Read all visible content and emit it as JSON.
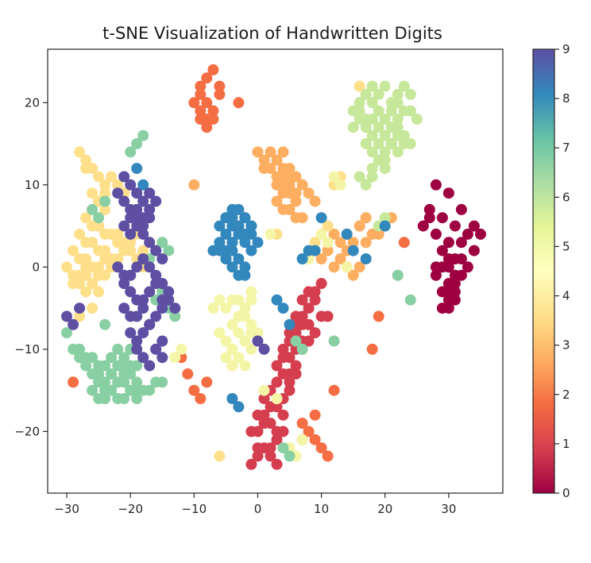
{
  "chart_data": {
    "type": "scatter",
    "title": "t-SNE Visualization of Handwritten Digits",
    "xlabel": "",
    "ylabel": "",
    "xlim": [
      -33,
      38.5
    ],
    "ylim": [
      -27.5,
      26.5
    ],
    "xticks": [
      -30,
      -20,
      -10,
      0,
      10,
      20,
      30
    ],
    "yticks": [
      -20,
      -10,
      0,
      10,
      20
    ],
    "grid": false,
    "legend": "none",
    "colormap": "Spectral",
    "colorbar": {
      "min": 0,
      "max": 9,
      "ticks": [
        0,
        1,
        2,
        3,
        4,
        5,
        6,
        7,
        8,
        9
      ],
      "colors": [
        "#9e0142",
        "#d53e4f",
        "#f46d43",
        "#fdae61",
        "#fee08b",
        "#ffffbf",
        "#e6f598",
        "#abdda4",
        "#66c2a5",
        "#3288bd",
        "#5e4fa2"
      ]
    },
    "series": [
      {
        "label": 0,
        "color": "#9e0142",
        "x": [
          28,
          30,
          32,
          34,
          27,
          29,
          31,
          33,
          35,
          26,
          28,
          30,
          32,
          34,
          29,
          31,
          33,
          30,
          32,
          28,
          30,
          31,
          29,
          30,
          31,
          32,
          30,
          29,
          31,
          30,
          29,
          31,
          30,
          28,
          27,
          21
        ],
        "y": [
          10,
          9,
          7,
          5,
          7,
          6,
          5,
          4,
          4,
          5,
          4,
          3,
          3,
          2,
          2,
          1,
          0,
          0,
          -1,
          -1,
          -2,
          -3,
          -3,
          -4,
          -2,
          1,
          1,
          0,
          -1,
          -5,
          -5,
          -4,
          -3,
          0,
          6,
          15
        ]
      },
      {
        "label": 1,
        "color": "#d53e4f",
        "x": [
          -1,
          0,
          1,
          2,
          3,
          -1,
          0,
          1,
          2,
          3,
          0,
          1,
          2,
          3,
          4,
          0,
          2,
          3,
          4,
          5,
          3,
          4,
          5,
          6,
          5,
          6,
          7,
          4,
          5,
          6,
          7,
          6,
          7,
          8,
          7,
          8,
          9,
          8,
          9,
          10,
          11,
          9,
          10,
          5,
          6,
          3,
          4,
          1,
          2,
          7,
          8,
          5,
          6,
          4
        ],
        "y": [
          -24,
          -23,
          -22,
          -22,
          -21,
          -20,
          -20,
          -19,
          -19,
          -20,
          -18,
          -18,
          -17,
          -17,
          -18,
          -22,
          -23,
          -24,
          -16,
          -15,
          -14,
          -13,
          -13,
          -12,
          -11,
          -10,
          -9,
          -10,
          -9,
          -8,
          -7,
          -6,
          -6,
          -5,
          -4,
          -3,
          -3,
          -7,
          -8,
          -6,
          -6,
          -4,
          -2,
          -14,
          -13,
          -12,
          -11,
          -16,
          -15,
          -10,
          -9,
          -8,
          -7,
          -20
        ]
      },
      {
        "label": 2,
        "color": "#f46d43",
        "x": [
          -9,
          -8,
          -7,
          -6,
          -9,
          -8,
          -7,
          -10,
          -9,
          -8,
          -6,
          -7,
          -8,
          -9,
          -3,
          -12,
          -11,
          -10,
          -9,
          -8,
          7,
          8,
          9,
          10,
          11,
          7,
          9,
          12,
          -29,
          -25,
          23,
          19,
          18
        ],
        "y": [
          22,
          23,
          24,
          22,
          21,
          20,
          19,
          20,
          19,
          18,
          21,
          18,
          17,
          18,
          20,
          -11,
          -13,
          -15,
          -16,
          -14,
          -19,
          -20,
          -21,
          -22,
          -23,
          -21,
          -18,
          -15,
          -14,
          5,
          3,
          -6,
          -10
        ]
      },
      {
        "label": 3,
        "color": "#fdae61",
        "x": [
          0,
          1,
          2,
          3,
          4,
          1,
          2,
          3,
          4,
          5,
          3,
          4,
          5,
          6,
          3,
          4,
          5,
          6,
          7,
          4,
          5,
          6,
          4,
          5,
          6,
          7,
          8,
          9,
          10,
          11,
          12,
          13,
          14,
          15,
          12,
          13,
          14,
          16,
          17,
          18,
          16,
          17,
          19,
          20,
          21,
          15,
          16,
          22,
          -10,
          -21,
          14
        ],
        "y": [
          14,
          13,
          14,
          13,
          14,
          12,
          12,
          11,
          11,
          10,
          10,
          9,
          9,
          8,
          8,
          7,
          7,
          6,
          6,
          10,
          11,
          9,
          12,
          12,
          11,
          10,
          9,
          8,
          1,
          2,
          0,
          1,
          2,
          3,
          4,
          3,
          4,
          5,
          6,
          4,
          5,
          3,
          4,
          5,
          6,
          -1,
          0,
          -1,
          10,
          9,
          0
        ]
      },
      {
        "label": 4,
        "color": "#fee08b",
        "x": [
          -27,
          -26,
          -25,
          -24,
          -23,
          -28,
          -27,
          -26,
          -25,
          -24,
          -22,
          -21,
          -28,
          -27,
          -26,
          -25,
          -24,
          -23,
          -29,
          -28,
          -27,
          -26,
          -25,
          -24,
          -22,
          -21,
          -30,
          -29,
          -28,
          -27,
          -26,
          -25,
          -24,
          -23,
          -22,
          -21,
          -20,
          -19,
          -29,
          -28,
          -27,
          -26,
          -25,
          -27,
          -25,
          -22,
          -21,
          -20,
          -19,
          -18,
          -26,
          -25,
          -24,
          -23,
          -22,
          -18,
          -17,
          -27,
          -26,
          -25,
          -24,
          16,
          17,
          18,
          12,
          13,
          9,
          10,
          11,
          -28,
          -26,
          -6,
          3
        ],
        "y": [
          13,
          12,
          11,
          10,
          11,
          14,
          12,
          9,
          8,
          9,
          10,
          9,
          4,
          3,
          3,
          2,
          2,
          1,
          2,
          1,
          1,
          0,
          0,
          1,
          4,
          3,
          0,
          -1,
          -1,
          0,
          0,
          -1,
          -1,
          0,
          1,
          2,
          3,
          4,
          -2,
          -2,
          -1,
          -2,
          -1,
          -3,
          -3,
          3,
          2,
          2,
          1,
          0,
          5,
          5,
          4,
          4,
          3,
          2,
          3,
          6,
          5,
          6,
          7,
          22,
          21,
          22,
          10,
          11,
          3,
          4,
          5,
          -6,
          -5,
          -23,
          4
        ]
      },
      {
        "label": 5,
        "color": "#f5f5a8",
        "x": [
          -7,
          -6,
          -5,
          -4,
          -3,
          -2,
          -1,
          -6,
          -5,
          -4,
          -3,
          -2,
          -1,
          -5,
          -4,
          -3,
          -2,
          -1,
          -4,
          -3,
          -2,
          -1,
          0,
          -4,
          -3,
          -2,
          -1,
          -3,
          -2,
          -1,
          1,
          3,
          2,
          10,
          11,
          9,
          8,
          14,
          13,
          12,
          -12,
          -13,
          -19,
          5,
          6,
          7,
          3
        ],
        "y": [
          -5,
          -4,
          -5,
          -4,
          -4,
          -5,
          -3,
          -8,
          -9,
          -10,
          -8,
          -9,
          -10,
          -11,
          -12,
          -11,
          -9,
          -8,
          -7,
          -6,
          -6,
          -7,
          -8,
          -10,
          -11,
          -12,
          -10,
          -6,
          -5,
          -4,
          -15,
          -16,
          4,
          4,
          3,
          2,
          1,
          0,
          10,
          11,
          -10,
          -11,
          -6,
          -22,
          -23,
          -21,
          -16
        ]
      },
      {
        "label": 6,
        "color": "#c7e89b",
        "x": [
          15,
          16,
          17,
          18,
          19,
          20,
          21,
          22,
          23,
          24,
          16,
          17,
          18,
          19,
          20,
          21,
          22,
          23,
          17,
          18,
          19,
          20,
          21,
          22,
          18,
          19,
          20,
          21,
          22,
          17,
          18,
          19,
          20,
          16,
          17,
          18,
          19,
          22,
          23,
          24,
          25,
          22,
          23,
          15,
          16,
          17,
          18,
          20,
          21,
          24,
          19,
          20
        ],
        "y": [
          19,
          20,
          21,
          22,
          21,
          22,
          20,
          21,
          22,
          21,
          19,
          18,
          20,
          19,
          18,
          19,
          20,
          19,
          17,
          18,
          17,
          16,
          17,
          18,
          16,
          15,
          14,
          15,
          16,
          15,
          14,
          13,
          12,
          11,
          10,
          12,
          13,
          17,
          16,
          19,
          18,
          14,
          15,
          17,
          18,
          10,
          11,
          13,
          20,
          15,
          5,
          6
        ]
      },
      {
        "label": 7,
        "color": "#89cfa4",
        "x": [
          -29,
          -28,
          -27,
          -26,
          -25,
          -24,
          -23,
          -22,
          -21,
          -20,
          -19,
          -18,
          -28,
          -27,
          -26,
          -25,
          -24,
          -23,
          -22,
          -21,
          -20,
          -19,
          -26,
          -25,
          -24,
          -23,
          -22,
          -21,
          -20,
          -19,
          -25,
          -24,
          -23,
          -22,
          -21,
          -20,
          -19,
          -18,
          -17,
          -16,
          -15,
          -23,
          -22,
          -21,
          -20,
          -17,
          -16,
          -15,
          -14,
          -15,
          -16,
          -14,
          -13,
          -24,
          -26,
          -25,
          -24,
          -20,
          -19,
          -18,
          -30,
          6,
          7,
          24,
          22,
          12,
          4,
          5
        ],
        "y": [
          -10,
          -10,
          -11,
          -11,
          -12,
          -12,
          -11,
          -10,
          -11,
          -12,
          -12,
          -11,
          -11,
          -12,
          -13,
          -13,
          -14,
          -13,
          -12,
          -13,
          -13,
          -14,
          -15,
          -14,
          -15,
          -15,
          -16,
          -16,
          -15,
          -15,
          -16,
          -16,
          -15,
          -14,
          -14,
          -15,
          -16,
          -15,
          -15,
          -14,
          -14,
          -13,
          -14,
          -12,
          -10,
          1,
          2,
          3,
          2,
          -3,
          -4,
          -5,
          -6,
          -7,
          7,
          6,
          8,
          14,
          15,
          16,
          -8,
          -9,
          -10,
          -4,
          -1,
          -9,
          -22,
          -23
        ]
      },
      {
        "label": 8,
        "color": "#3287bd",
        "x": [
          -5,
          -4,
          -3,
          -2,
          -1,
          -5,
          -4,
          -3,
          -2,
          -1,
          0,
          -6,
          -5,
          -4,
          -3,
          -2,
          -1,
          -7,
          -6,
          -5,
          -4,
          -3,
          -2,
          -6,
          -5,
          -4,
          -3,
          -2,
          -4,
          -3,
          -2,
          -1,
          -5,
          -4,
          10,
          9,
          7,
          8,
          3,
          4,
          5,
          14,
          15,
          17,
          20,
          -19,
          -18,
          -4,
          -3
        ],
        "y": [
          6,
          5,
          5,
          6,
          5,
          4,
          3,
          4,
          3,
          4,
          3,
          2,
          1,
          2,
          1,
          0,
          2,
          2,
          3,
          1,
          0,
          -1,
          -1,
          5,
          6,
          6,
          5,
          4,
          7,
          7,
          6,
          5,
          2,
          3,
          6,
          2,
          1,
          2,
          -4,
          -5,
          -7,
          4,
          2,
          1,
          5,
          12,
          10,
          -16,
          -17
        ]
      },
      {
        "label": 9,
        "color": "#5e4fa2",
        "x": [
          -21,
          -20,
          -19,
          -18,
          -17,
          -22,
          -21,
          -20,
          -19,
          -18,
          -17,
          -21,
          -20,
          -19,
          -18,
          -17,
          -16,
          -20,
          -19,
          -18,
          -17,
          -16,
          -15,
          -22,
          -21,
          -20,
          -19,
          -18,
          -17,
          -16,
          -15,
          -14,
          -20,
          -19,
          -18,
          -17,
          -16,
          -15,
          -21,
          -20,
          -19,
          -18,
          -17,
          -16,
          -15,
          -14,
          -20,
          -19,
          -18,
          -17,
          -16,
          -15,
          -19,
          -18,
          -17,
          -16,
          -15,
          -21,
          -20,
          -13,
          -29,
          -30,
          -28,
          0,
          1
        ],
        "y": [
          11,
          10,
          9,
          8,
          9,
          9,
          8,
          7,
          7,
          6,
          6,
          5,
          6,
          6,
          5,
          7,
          8,
          4,
          5,
          4,
          3,
          2,
          1,
          0,
          -1,
          -1,
          0,
          1,
          0,
          -1,
          -2,
          -3,
          -3,
          -4,
          -4,
          -3,
          -2,
          -4,
          -5,
          -6,
          -6,
          -5,
          -7,
          -6,
          -5,
          -4,
          -8,
          -9,
          -8,
          -7,
          -10,
          -9,
          -10,
          -11,
          -12,
          -10,
          -11,
          -2,
          -1,
          -5,
          -7,
          -6,
          -5,
          -9,
          -10
        ]
      }
    ]
  }
}
